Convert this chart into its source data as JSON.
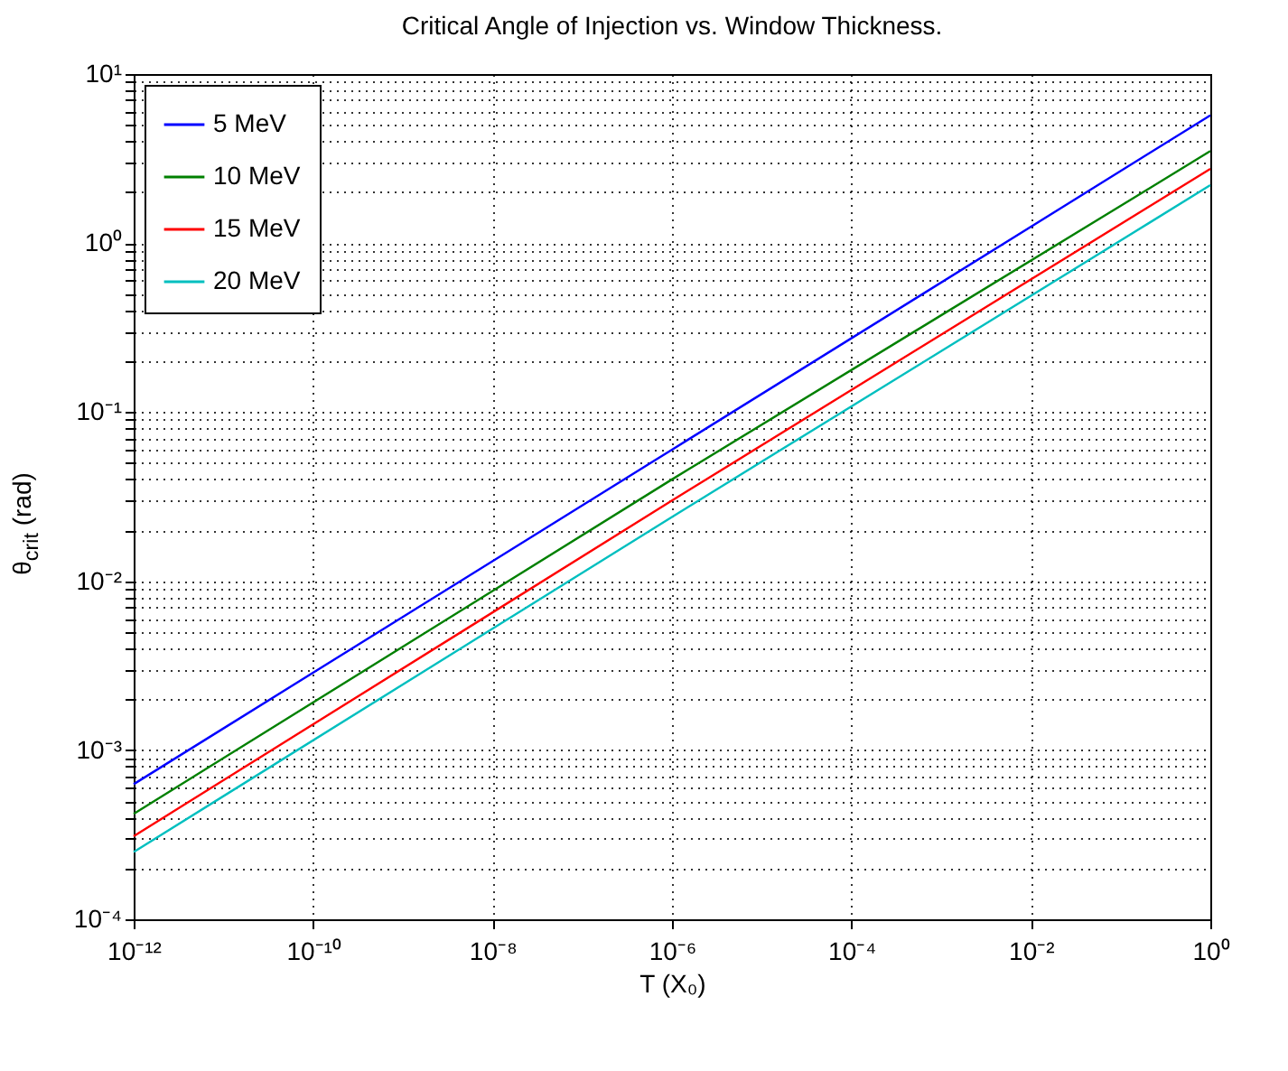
{
  "chart_data": {
    "type": "line",
    "title": "Critical Angle of Injection vs. Window Thickness.",
    "xlabel": "T (X₀)",
    "ylabel": "θ$_{crit}$ (rad)",
    "log": "xy",
    "grid": true,
    "legend": "top left",
    "line_style": "solid",
    "x": [
      1e-12,
      1e-06,
      1
    ],
    "xlim": [
      1e-12,
      1
    ],
    "xticks": [
      {
        "value": 1e-12,
        "label": "10⁻¹²"
      },
      {
        "value": 1e-10,
        "label": "10⁻¹⁰"
      },
      {
        "value": 1e-08,
        "label": "10⁻⁸"
      },
      {
        "value": 1e-06,
        "label": "10⁻⁶"
      },
      {
        "value": 0.0001,
        "label": "10⁻⁴"
      },
      {
        "value": 0.01,
        "label": "10⁻²"
      },
      {
        "value": 1,
        "label": "10⁰"
      }
    ],
    "ylim": [
      0.0001,
      10
    ],
    "yticks": [
      {
        "value": 0.0001,
        "label": "10⁻⁴"
      },
      {
        "value": 0.0002,
        "label": null
      },
      {
        "value": 0.0003,
        "label": null
      },
      {
        "value": 0.0004,
        "label": null
      },
      {
        "value": 0.0005,
        "label": null
      },
      {
        "value": 0.0006,
        "label": null
      },
      {
        "value": 0.0007,
        "label": null
      },
      {
        "value": 0.0008,
        "label": null
      },
      {
        "value": 0.0009,
        "label": null
      },
      {
        "value": 0.001,
        "label": "10⁻³"
      },
      {
        "value": 0.002,
        "label": null
      },
      {
        "value": 0.003,
        "label": null
      },
      {
        "value": 0.004,
        "label": null
      },
      {
        "value": 0.005,
        "label": null
      },
      {
        "value": 0.006,
        "label": null
      },
      {
        "value": 0.007,
        "label": null
      },
      {
        "value": 0.008,
        "label": null
      },
      {
        "value": 0.009,
        "label": null
      },
      {
        "value": 0.01,
        "label": "10⁻²"
      },
      {
        "value": 0.02,
        "label": null
      },
      {
        "value": 0.03,
        "label": null
      },
      {
        "value": 0.04,
        "label": null
      },
      {
        "value": 0.05,
        "label": null
      },
      {
        "value": 0.06,
        "label": null
      },
      {
        "value": 0.07,
        "label": null
      },
      {
        "value": 0.08,
        "label": null
      },
      {
        "value": 0.09,
        "label": null
      },
      {
        "value": 0.1,
        "label": "10⁻¹"
      },
      {
        "value": 0.2,
        "label": null
      },
      {
        "value": 0.3,
        "label": null
      },
      {
        "value": 0.4,
        "label": null
      },
      {
        "value": 0.5,
        "label": null
      },
      {
        "value": 0.6,
        "label": null
      },
      {
        "value": 0.7,
        "label": null
      },
      {
        "value": 0.8,
        "label": null
      },
      {
        "value": 0.9,
        "label": null
      },
      {
        "value": 1,
        "label": "10⁰"
      },
      {
        "value": 2,
        "label": null
      },
      {
        "value": 3,
        "label": null
      },
      {
        "value": 4,
        "label": null
      },
      {
        "value": 5,
        "label": null
      },
      {
        "value": 6,
        "label": null
      },
      {
        "value": 7,
        "label": null
      },
      {
        "value": 8,
        "label": null
      },
      {
        "value": 9,
        "label": null
      },
      {
        "value": 10,
        "label": "10¹"
      }
    ],
    "series": [
      {
        "name": "5 MeV",
        "color": "#0000ff",
        "values": [
          0.00063,
          0.06,
          5.7
        ]
      },
      {
        "name": "10 MeV",
        "color": "#008000",
        "values": [
          0.00042,
          0.04,
          3.5
        ]
      },
      {
        "name": "15 MeV",
        "color": "#ff0000",
        "values": [
          0.00031,
          0.03,
          2.75
        ]
      },
      {
        "name": "20 MeV",
        "color": "#00bfbf",
        "values": [
          0.00025,
          0.024,
          2.2
        ]
      }
    ]
  }
}
